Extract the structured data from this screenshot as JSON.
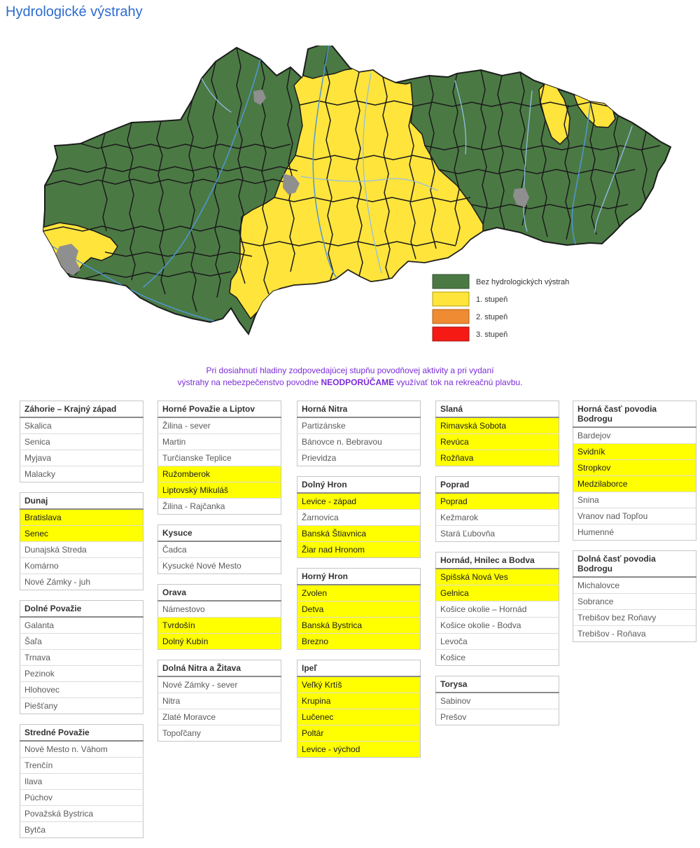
{
  "page": {
    "title": "Hydrologické výstrahy"
  },
  "notice": {
    "line1": "Pri dosiahnutí hladiny zodpovedajúcej stupňu povodňovej aktivity a pri vydaní",
    "line2_pre": "výstrahy na nebezpečenstvo povodne ",
    "line2_bold": "NEODPORÚČAME",
    "line2_post": " využívať tok na rekreačnú plavbu."
  },
  "map": {
    "name": "hydrological-warnings-map-slovakia",
    "colors": {
      "no_warning": "#4B7944",
      "level1": "#FFE43C",
      "level2": "#EE8B33",
      "level3": "#F61A15",
      "river": "#4f97d6",
      "district_border": "#1b1b1b",
      "city": "#8f8f8f"
    }
  },
  "legend": {
    "items": [
      {
        "label": "Bez hydrologických výstrah",
        "color": "#4B7944"
      },
      {
        "label": "1. stupeň",
        "color": "#FFE43C"
      },
      {
        "label": "2. stupeň",
        "color": "#EE8B33"
      },
      {
        "label": "3. stupeň",
        "color": "#F61A15"
      }
    ]
  },
  "columns": [
    [
      {
        "title": "Záhorie – Krajný západ",
        "rows": [
          {
            "label": "Skalica",
            "warn": false
          },
          {
            "label": "Senica",
            "warn": false
          },
          {
            "label": "Myjava",
            "warn": false
          },
          {
            "label": "Malacky",
            "warn": false
          }
        ]
      },
      {
        "title": "Dunaj",
        "rows": [
          {
            "label": "Bratislava",
            "warn": true
          },
          {
            "label": "Senec",
            "warn": true
          },
          {
            "label": "Dunajská Streda",
            "warn": false
          },
          {
            "label": "Komárno",
            "warn": false
          },
          {
            "label": "Nové Zámky - juh",
            "warn": false
          }
        ]
      },
      {
        "title": "Dolné Považie",
        "rows": [
          {
            "label": "Galanta",
            "warn": false
          },
          {
            "label": "Šaľa",
            "warn": false
          },
          {
            "label": "Trnava",
            "warn": false
          },
          {
            "label": "Pezinok",
            "warn": false
          },
          {
            "label": "Hlohovec",
            "warn": false
          },
          {
            "label": "Piešťany",
            "warn": false
          }
        ]
      },
      {
        "title": "Stredné Považie",
        "rows": [
          {
            "label": "Nové Mesto n. Váhom",
            "warn": false
          },
          {
            "label": "Trenčín",
            "warn": false
          },
          {
            "label": "Ilava",
            "warn": false
          },
          {
            "label": "Púchov",
            "warn": false
          },
          {
            "label": "Považská Bystrica",
            "warn": false
          },
          {
            "label": "Bytča",
            "warn": false
          }
        ]
      }
    ],
    [
      {
        "title": "Horné Považie a Liptov",
        "rows": [
          {
            "label": "Žilina - sever",
            "warn": false
          },
          {
            "label": "Martin",
            "warn": false
          },
          {
            "label": "Turčianske Teplice",
            "warn": false
          },
          {
            "label": "Ružomberok",
            "warn": true
          },
          {
            "label": "Liptovský Mikuláš",
            "warn": true
          },
          {
            "label": "Žilina - Rajčanka",
            "warn": false
          }
        ]
      },
      {
        "title": "Kysuce",
        "rows": [
          {
            "label": "Čadca",
            "warn": false
          },
          {
            "label": "Kysucké Nové Mesto",
            "warn": false
          }
        ]
      },
      {
        "title": "Orava",
        "rows": [
          {
            "label": "Námestovo",
            "warn": false
          },
          {
            "label": "Tvrdošín",
            "warn": true
          },
          {
            "label": "Dolný Kubín",
            "warn": true
          }
        ]
      },
      {
        "title": "Dolná Nitra a Žitava",
        "rows": [
          {
            "label": "Nové Zámky - sever",
            "warn": false
          },
          {
            "label": "Nitra",
            "warn": false
          },
          {
            "label": "Zlaté Moravce",
            "warn": false
          },
          {
            "label": "Topoľčany",
            "warn": false
          }
        ]
      }
    ],
    [
      {
        "title": "Horná Nitra",
        "rows": [
          {
            "label": "Partizánske",
            "warn": false
          },
          {
            "label": "Bánovce n. Bebravou",
            "warn": false
          },
          {
            "label": "Prievidza",
            "warn": false
          }
        ]
      },
      {
        "title": "Dolný Hron",
        "rows": [
          {
            "label": "Levice - západ",
            "warn": true
          },
          {
            "label": "Žarnovica",
            "warn": false
          },
          {
            "label": "Banská Štiavnica",
            "warn": true
          },
          {
            "label": "Žiar nad Hronom",
            "warn": true
          }
        ]
      },
      {
        "title": "Horný Hron",
        "rows": [
          {
            "label": "Zvolen",
            "warn": true
          },
          {
            "label": "Detva",
            "warn": true
          },
          {
            "label": "Banská Bystrica",
            "warn": true
          },
          {
            "label": "Brezno",
            "warn": true
          }
        ]
      },
      {
        "title": "Ipeľ",
        "rows": [
          {
            "label": "Veľký Krtíš",
            "warn": true
          },
          {
            "label": "Krupina",
            "warn": true
          },
          {
            "label": "Lučenec",
            "warn": true
          },
          {
            "label": "Poltár",
            "warn": true
          },
          {
            "label": "Levice - východ",
            "warn": true
          }
        ]
      }
    ],
    [
      {
        "title": "Slaná",
        "rows": [
          {
            "label": "Rimavská Sobota",
            "warn": true
          },
          {
            "label": "Revúca",
            "warn": true
          },
          {
            "label": "Rožňava",
            "warn": true
          }
        ]
      },
      {
        "title": "Poprad",
        "rows": [
          {
            "label": "Poprad",
            "warn": true
          },
          {
            "label": "Kežmarok",
            "warn": false
          },
          {
            "label": "Stará Ľubovňa",
            "warn": false
          }
        ]
      },
      {
        "title": "Hornád, Hnilec a Bodva",
        "rows": [
          {
            "label": "Spišská Nová Ves",
            "warn": true
          },
          {
            "label": "Gelnica",
            "warn": true
          },
          {
            "label": "Košice okolie – Hornád",
            "warn": false
          },
          {
            "label": "Košice okolie - Bodva",
            "warn": false
          },
          {
            "label": "Levoča",
            "warn": false
          },
          {
            "label": "Košice",
            "warn": false
          }
        ]
      },
      {
        "title": "Torysa",
        "rows": [
          {
            "label": "Sabinov",
            "warn": false
          },
          {
            "label": "Prešov",
            "warn": false
          }
        ]
      }
    ],
    [
      {
        "title": "Horná časť povodia Bodrogu",
        "rows": [
          {
            "label": "Bardejov",
            "warn": false
          },
          {
            "label": "Svidník",
            "warn": true
          },
          {
            "label": "Stropkov",
            "warn": true
          },
          {
            "label": "Medzilaborce",
            "warn": true
          },
          {
            "label": "Snina",
            "warn": false
          },
          {
            "label": "Vranov nad Topľou",
            "warn": false
          },
          {
            "label": "Humenné",
            "warn": false
          }
        ]
      },
      {
        "title": "Dolná časť povodia Bodrogu",
        "rows": [
          {
            "label": "Michalovce",
            "warn": false
          },
          {
            "label": "Sobrance",
            "warn": false
          },
          {
            "label": "Trebišov bez Roňavy",
            "warn": false
          },
          {
            "label": "Trebišov - Roňava",
            "warn": false
          }
        ]
      }
    ]
  ]
}
